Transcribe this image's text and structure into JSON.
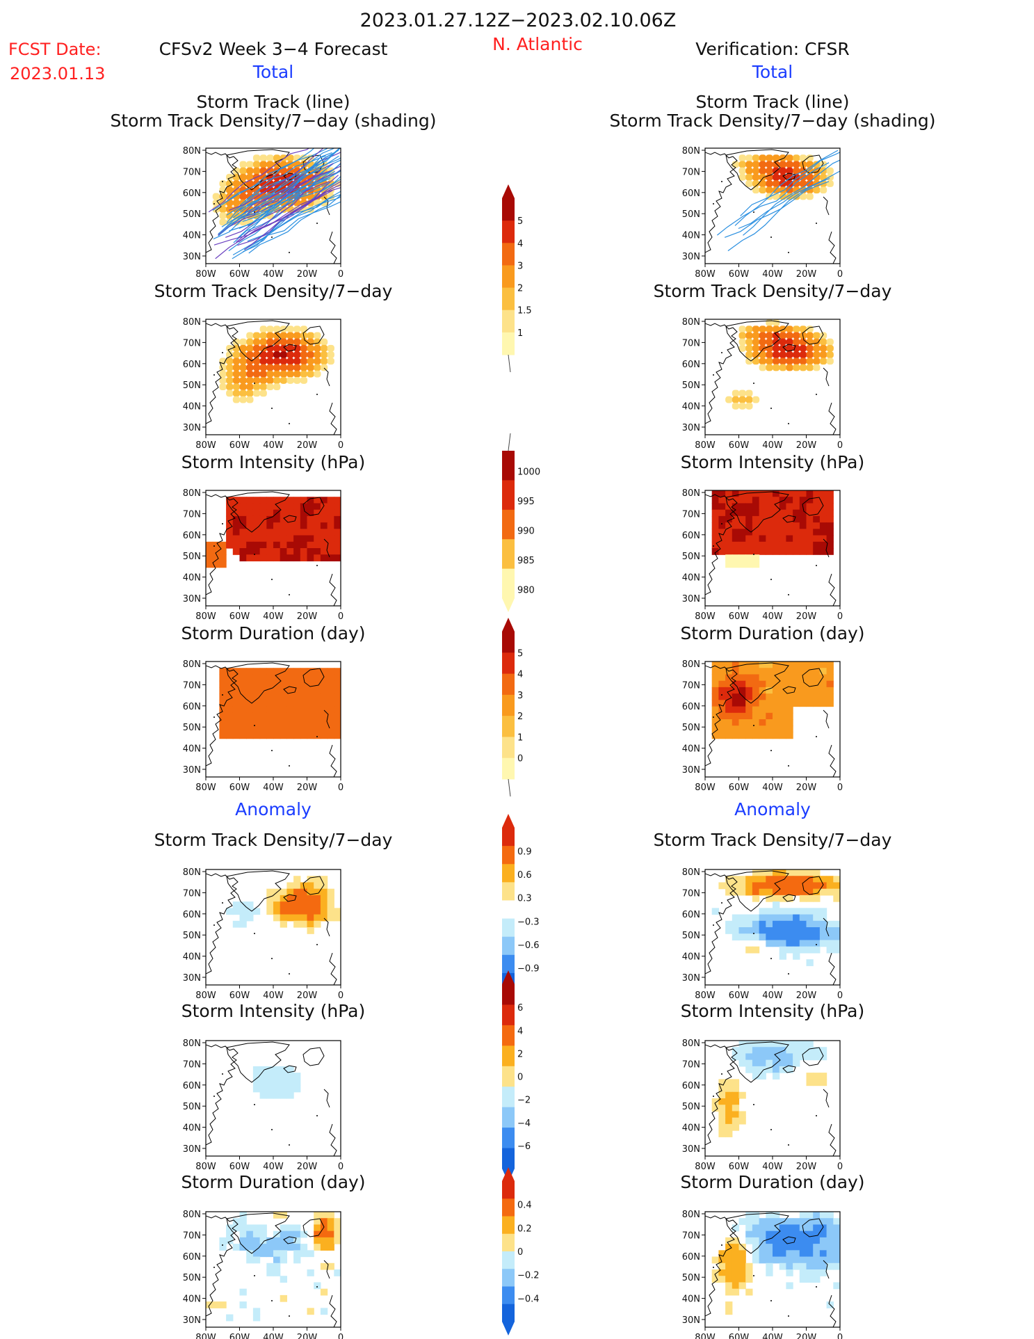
{
  "header": {
    "date_range": "2023.01.27.12Z−2023.02.10.06Z",
    "fcst_label": "FCST Date:",
    "fcst_date": "2023.01.13",
    "forecast_title": "CFSv2 Week 3−4 Forecast",
    "region": "N. Atlantic",
    "verification_title": "Verification: CFSR"
  },
  "section_labels": {
    "total": "Total",
    "anomaly": "Anomaly"
  },
  "colors": {
    "red_text": "#ff2020",
    "blue_text": "#1a3cff",
    "track_blue": "#2a8fe0",
    "track_purple": "#6a40c0",
    "seq_ramp": [
      "#fff7b0",
      "#fde28a",
      "#fbbf40",
      "#f99a1e",
      "#f26a12",
      "#dc2a0c",
      "#a80a05"
    ],
    "div_ramp": [
      "#1464dc",
      "#3c8cf0",
      "#8cc8f8",
      "#c4ecfa",
      "#ffffff",
      "#fde28a",
      "#fbb020",
      "#f46a10",
      "#dc2a0c",
      "#a80a05"
    ]
  },
  "panel_titles": {
    "track_line": "Storm Track (line)",
    "track_shading": "Storm Track Density/7−day (shading)",
    "density": "Storm Track Density/7−day",
    "intensity": "Storm Intensity (hPa)",
    "duration": "Storm Duration (day)"
  },
  "map_axes": {
    "x_ticks": [
      "80W",
      "60W",
      "40W",
      "20W",
      "0"
    ],
    "y_ticks": [
      "80N",
      "70N",
      "60N",
      "50N",
      "40N",
      "30N"
    ]
  },
  "colorbars": [
    {
      "id": "density_total",
      "ticks": [
        "5",
        "4",
        "3",
        "2",
        "1.5",
        "1"
      ]
    },
    {
      "id": "intensity_total",
      "ticks": [
        "1000",
        "995",
        "990",
        "985",
        "980"
      ]
    },
    {
      "id": "duration_total",
      "ticks": [
        "5",
        "4",
        "3",
        "2",
        "1",
        "0"
      ]
    },
    {
      "id": "density_anom",
      "ticks": [
        "0.9",
        "0.6",
        "0.3",
        "−0.3",
        "−0.6",
        "−0.9"
      ]
    },
    {
      "id": "intensity_anom",
      "ticks": [
        "6",
        "4",
        "2",
        "0",
        "−2",
        "−4",
        "−6"
      ]
    },
    {
      "id": "duration_anom",
      "ticks": [
        "0.4",
        "0.2",
        "0",
        "−0.2",
        "−0.4"
      ]
    }
  ],
  "chart_data": {
    "type": "heatmap",
    "region": "N. Atlantic",
    "lon_range": [
      -80,
      0
    ],
    "lat_range": [
      25,
      85
    ],
    "panels": [
      {
        "id": "fc_track",
        "column": "forecast",
        "variable": "track_line_density",
        "pattern": "track_fc"
      },
      {
        "id": "ver_track",
        "column": "verification",
        "variable": "track_line_density",
        "pattern": "track_ver"
      },
      {
        "id": "fc_density",
        "column": "forecast",
        "variable": "density_total",
        "pattern": "dens_fc"
      },
      {
        "id": "ver_density",
        "column": "verification",
        "variable": "density_total",
        "pattern": "dens_ver"
      },
      {
        "id": "fc_intensity",
        "column": "forecast",
        "variable": "intensity_total",
        "pattern": "int_fc"
      },
      {
        "id": "ver_intensity",
        "column": "verification",
        "variable": "intensity_total",
        "pattern": "int_ver"
      },
      {
        "id": "fc_duration",
        "column": "forecast",
        "variable": "duration_total",
        "pattern": "dur_fc"
      },
      {
        "id": "ver_duration",
        "column": "verification",
        "variable": "duration_total",
        "pattern": "dur_ver"
      },
      {
        "id": "fc_density_anom",
        "column": "forecast",
        "variable": "density_anomaly",
        "pattern": "dens_anom_fc"
      },
      {
        "id": "ver_density_anom",
        "column": "verification",
        "variable": "density_anomaly",
        "pattern": "dens_anom_ver"
      },
      {
        "id": "fc_intensity_anom",
        "column": "forecast",
        "variable": "intensity_anomaly",
        "pattern": "int_anom_fc"
      },
      {
        "id": "ver_intensity_anom",
        "column": "verification",
        "variable": "intensity_anomaly",
        "pattern": "int_anom_ver"
      },
      {
        "id": "fc_duration_anom",
        "column": "forecast",
        "variable": "duration_anomaly",
        "pattern": "dur_anom_fc"
      },
      {
        "id": "ver_duration_anom",
        "column": "verification",
        "variable": "duration_anomaly",
        "pattern": "dur_anom_ver"
      }
    ]
  }
}
